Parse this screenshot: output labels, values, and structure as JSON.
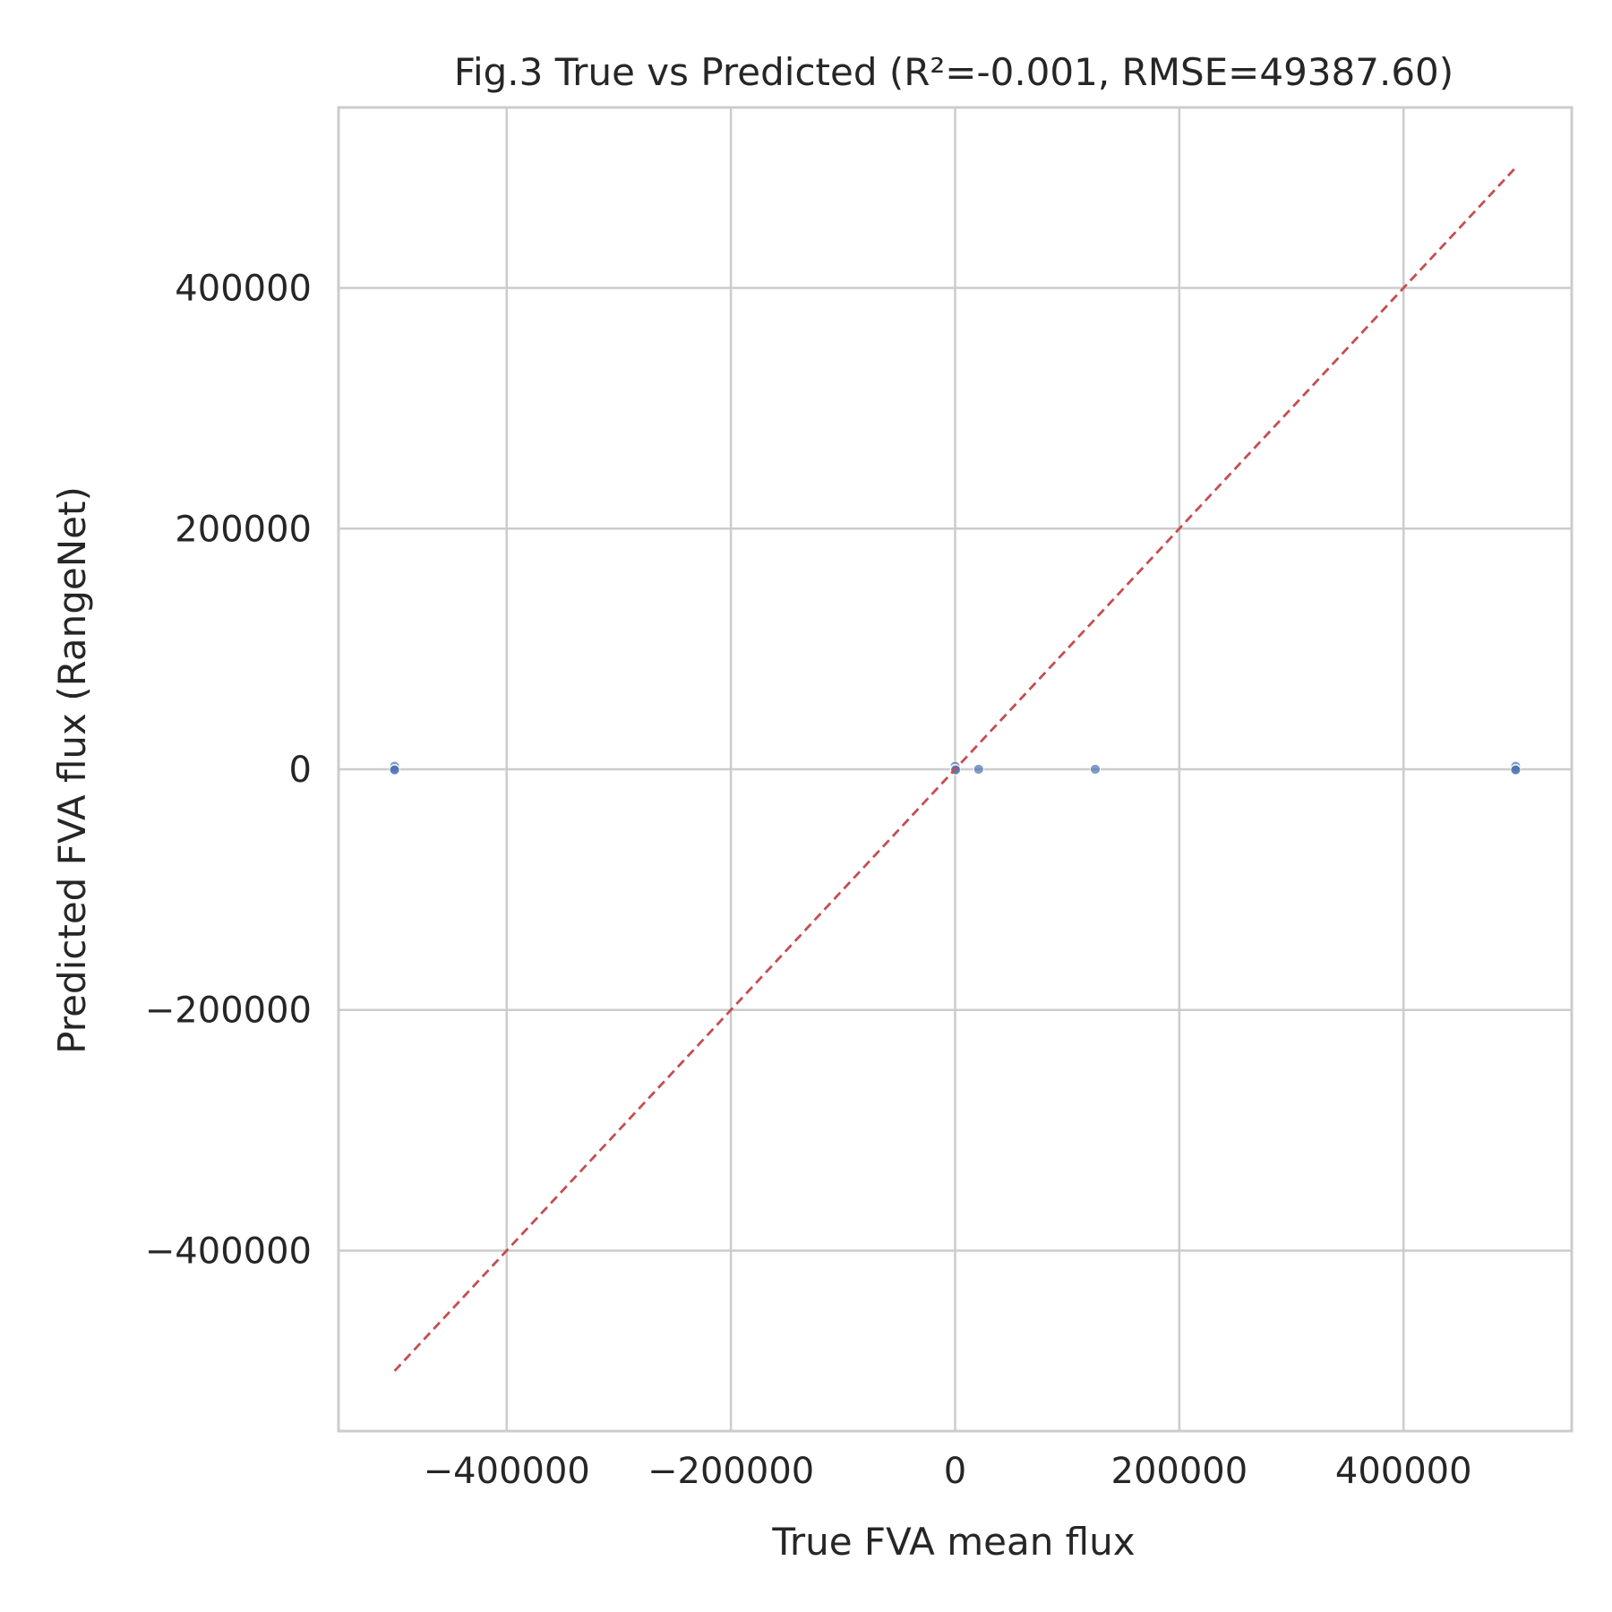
{
  "chart_data": {
    "type": "scatter",
    "title": "Fig.3 True vs Predicted (R²=-0.001, RMSE=49387.60)",
    "xlabel": "True FVA mean flux",
    "ylabel": "Predicted FVA flux (RangeNet)",
    "xlim": [
      -550000,
      550000
    ],
    "ylim": [
      -550000,
      550000
    ],
    "x_ticks": [
      -400000,
      -200000,
      0,
      200000,
      400000
    ],
    "x_tick_labels": [
      "−400000",
      "−200000",
      "0",
      "200000",
      "400000"
    ],
    "y_ticks": [
      -400000,
      -200000,
      0,
      200000,
      400000
    ],
    "y_tick_labels": [
      "−400000",
      "−200000",
      "0",
      "200000",
      "400000"
    ],
    "grid": true,
    "colors": {
      "points": "#4c72b0",
      "reference_line": "#c44e52",
      "grid": "#cccccc",
      "frame": "#cccccc",
      "text": "#262626"
    },
    "points": [
      {
        "x": -500000,
        "y": 2500
      },
      {
        "x": -500000,
        "y": 0
      },
      {
        "x": -500000,
        "y": -500
      },
      {
        "x": 0,
        "y": 2500
      },
      {
        "x": 0,
        "y": 0
      },
      {
        "x": 500,
        "y": -500
      },
      {
        "x": 21000,
        "y": 0
      },
      {
        "x": 125000,
        "y": 0
      },
      {
        "x": 500000,
        "y": 2500
      },
      {
        "x": 500000,
        "y": 0
      },
      {
        "x": 500000,
        "y": -500
      }
    ],
    "reference_line": {
      "style": "dashed",
      "x": [
        -500000,
        500000
      ],
      "y": [
        -500000,
        500000
      ]
    }
  }
}
